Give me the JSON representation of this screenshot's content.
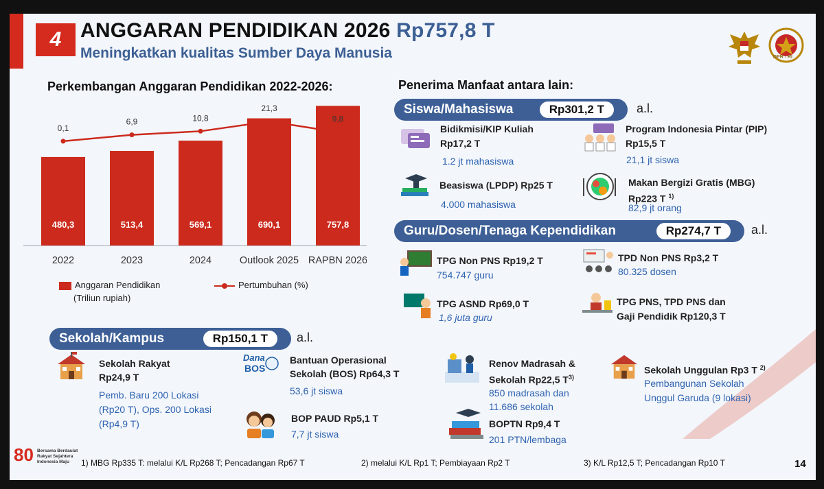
{
  "header": {
    "number": "4",
    "title": "ANGGARAN PENDIDIKAN 2026",
    "title_amount": "Rp757,8 T",
    "subtitle": "Meningkatkan kualitas Sumber Daya Manusia",
    "logo_caption": "DPR - RI"
  },
  "chart_section": {
    "heading": "Perkembangan Anggaran Pendidikan 2022-2026:",
    "legend_bar": "Anggaran Pendidikan",
    "legend_bar_sub": "(Triliun rupiah)",
    "legend_line": "Pertumbuhan (%)"
  },
  "chart_data": {
    "type": "bar",
    "categories": [
      "2022",
      "2023",
      "2024",
      "Outlook 2025",
      "RAPBN 2026"
    ],
    "series": [
      {
        "name": "Anggaran Pendidikan",
        "values": [
          480.3,
          513.4,
          569.1,
          690.1,
          757.8
        ],
        "labels": [
          "480,3",
          "513,4",
          "569,1",
          "690,1",
          "757,8"
        ],
        "type": "bar",
        "color": "#cc2a1c"
      },
      {
        "name": "Pertumbuhan (%)",
        "values": [
          0.1,
          6.9,
          10.8,
          21.3,
          9.8
        ],
        "labels": [
          "0,1",
          "6,9",
          "10,8",
          "21,3",
          "9,8"
        ],
        "type": "line",
        "color": "#cc2a1c"
      }
    ],
    "ylim": [
      0,
      800
    ],
    "legend_position": "bottom",
    "grid": false
  },
  "right": {
    "heading": "Penerima Manfaat antara lain:",
    "siswa": {
      "label": "Siswa/Mahasiswa",
      "amount": "Rp301,2 T",
      "al": "a.l.",
      "items": [
        {
          "title": "Bidikmisi/KIP Kuliah",
          "title2": "Rp17,2 T",
          "sub": "1.2 jt mahasiswa"
        },
        {
          "title": "Program Indonesia Pintar (PIP)",
          "title2": "Rp15,5 T",
          "sub": "21,1 jt siswa"
        },
        {
          "title": "Beasiswa (LPDP) Rp25 T",
          "sub": "4.000 mahasiswa"
        },
        {
          "title": "Makan Bergizi Gratis (MBG)",
          "title2": "Rp223 T",
          "sup": "1)",
          "sub": "82,9  jt orang"
        }
      ]
    },
    "guru": {
      "label": "Guru/Dosen/Tenaga Kependidikan",
      "amount": "Rp274,7 T",
      "al": "a.l.",
      "items": [
        {
          "title": "TPG Non PNS Rp19,2 T",
          "sub": "754.747 guru"
        },
        {
          "title": "TPD Non PNS Rp3,2 T",
          "sub": "80.325 dosen"
        },
        {
          "title": "TPG ASND Rp69,0 T",
          "sub": "1,6 juta guru"
        },
        {
          "title": "TPG PNS, TPD PNS dan",
          "title2": "Gaji Pendidik Rp120,3 T"
        }
      ]
    }
  },
  "sekolah": {
    "label": "Sekolah/Kampus",
    "amount": "Rp150,1 T",
    "al": "a.l.",
    "items": [
      {
        "title": "Sekolah Rakyat",
        "title2": "Rp24,9 T",
        "sub": "Pemb. Baru  200 Lokasi",
        "sub2": "(Rp20 T), Ops. 200 Lokasi",
        "sub3": "(Rp4,9 T)"
      },
      {
        "title": "Bantuan Operasional",
        "title2": "Sekolah (BOS) Rp64,3 T",
        "sub": "53,6 jt siswa"
      },
      {
        "title": "BOP PAUD Rp5,1 T",
        "sub": "7,7 jt siswa"
      },
      {
        "title": "Renov Madrasah &",
        "title2": "Sekolah Rp22,5 T",
        "sup": "3)",
        "sub": "850 madrasah dan",
        "sub2": "11.686 sekolah"
      },
      {
        "title": "BOPTN Rp9,4 T",
        "sub": "201 PTN/lembaga"
      },
      {
        "title": "Sekolah Unggulan Rp3 T",
        "sup": "2)",
        "sub": "Pembangunan Sekolah",
        "sub2": "Unggul Garuda (9 lokasi)"
      }
    ],
    "bos_logo": "Dana BOS"
  },
  "footer": {
    "logo": "80",
    "tagline": [
      "Bersama Berdaulat",
      "Rakyat Sejahtera",
      "Indonesia Maju"
    ],
    "note1": "1) MBG Rp335 T: melalui K/L Rp268 T; Pencadangan Rp67 T",
    "note2": "2) melalui K/L Rp1 T; Pembiayaan Rp2 T",
    "note3": "3) K/L Rp12,5 T; Pencadangan Rp10 T",
    "page": "14"
  }
}
